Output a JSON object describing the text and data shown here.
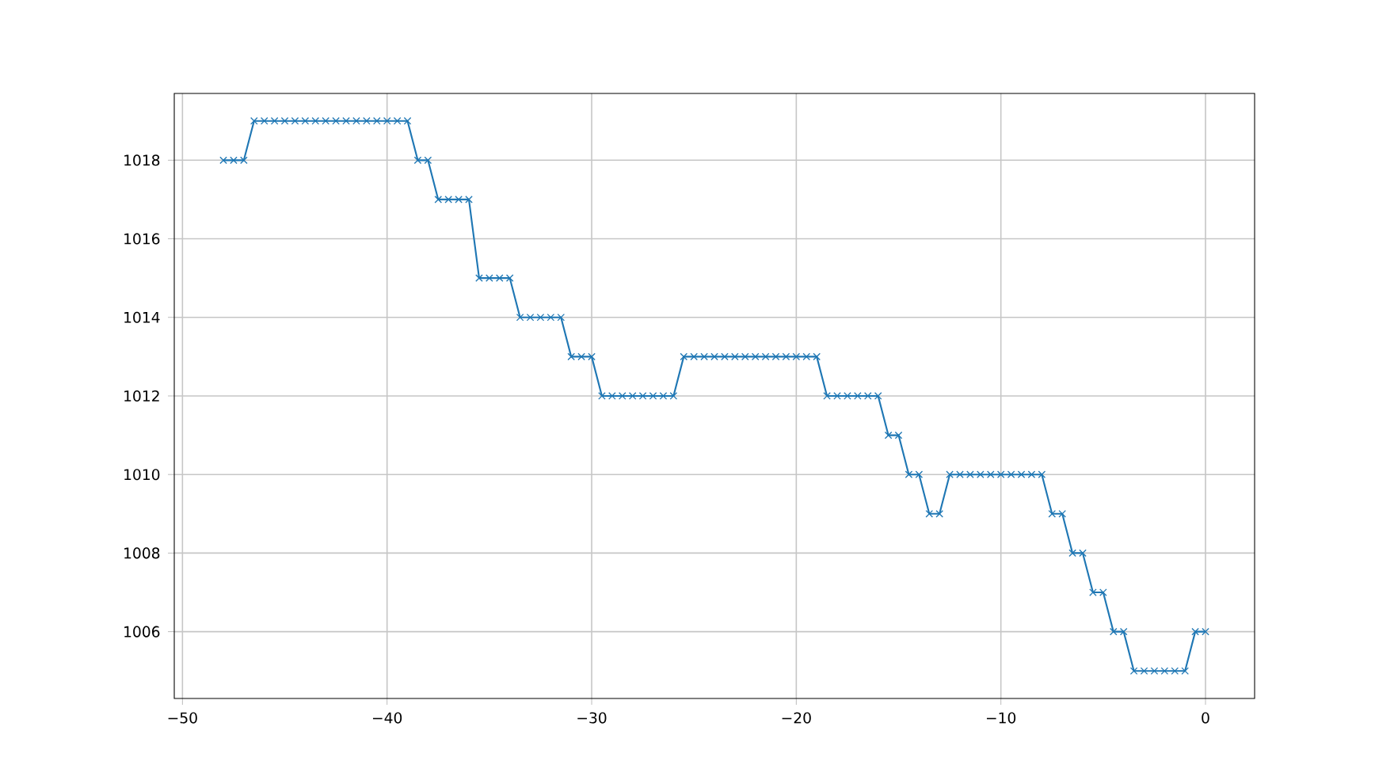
{
  "chart_data": {
    "type": "line",
    "x": [
      -48,
      -47.5,
      -47,
      -46.5,
      -46,
      -45.5,
      -45,
      -44.5,
      -44,
      -43.5,
      -43,
      -42.5,
      -42,
      -41.5,
      -41,
      -40.5,
      -40,
      -39.5,
      -39,
      -38.5,
      -38,
      -37.5,
      -37,
      -36.5,
      -36,
      -35.5,
      -35,
      -34.5,
      -34,
      -33.5,
      -33,
      -32.5,
      -32,
      -31.5,
      -31,
      -30.5,
      -30,
      -29.5,
      -29,
      -28.5,
      -28,
      -27.5,
      -27,
      -26.5,
      -26,
      -25.5,
      -25,
      -24.5,
      -24,
      -23.5,
      -23,
      -22.5,
      -22,
      -21.5,
      -21,
      -20.5,
      -20,
      -19.5,
      -19,
      -18.5,
      -18,
      -17.5,
      -17,
      -16.5,
      -16,
      -15.5,
      -15,
      -14.5,
      -14,
      -13.5,
      -13,
      -12.5,
      -12,
      -11.5,
      -11,
      -10.5,
      -10,
      -9.5,
      -9,
      -8.5,
      -8,
      -7.5,
      -7,
      -6.5,
      -6,
      -5.5,
      -5,
      -4.5,
      -4,
      -3.5,
      -3,
      -2.5,
      -2,
      -1.5,
      -1,
      -0.5,
      0
    ],
    "values": [
      1018,
      1018,
      1018,
      1019,
      1019,
      1019,
      1019,
      1019,
      1019,
      1019,
      1019,
      1019,
      1019,
      1019,
      1019,
      1019,
      1019,
      1019,
      1019,
      1018,
      1018,
      1017,
      1017,
      1017,
      1017,
      1015,
      1015,
      1015,
      1015,
      1014,
      1014,
      1014,
      1014,
      1014,
      1013,
      1013,
      1013,
      1012,
      1012,
      1012,
      1012,
      1012,
      1012,
      1012,
      1012,
      1013,
      1013,
      1013,
      1013,
      1013,
      1013,
      1013,
      1013,
      1013,
      1013,
      1013,
      1013,
      1013,
      1013,
      1012,
      1012,
      1012,
      1012,
      1012,
      1012,
      1011,
      1011,
      1010,
      1010,
      1009,
      1009,
      1010,
      1010,
      1010,
      1010,
      1010,
      1010,
      1010,
      1010,
      1010,
      1010,
      1009,
      1009,
      1008,
      1008,
      1007,
      1007,
      1006,
      1006,
      1005,
      1005,
      1005,
      1005,
      1005,
      1005,
      1006,
      1006
    ],
    "color": "#1f77b4",
    "marker": "cross",
    "line_style": "solid",
    "grid": true,
    "xlim": [
      -50.4,
      2.4
    ],
    "ylim": [
      1004.3,
      1019.7
    ],
    "xticks": [
      {
        "value": -50,
        "label": "−50"
      },
      {
        "value": -40,
        "label": "−40"
      },
      {
        "value": -30,
        "label": "−30"
      },
      {
        "value": -20,
        "label": "−20"
      },
      {
        "value": -10,
        "label": "−10"
      },
      0
    ],
    "yticks": [
      1006,
      1008,
      1010,
      1012,
      1014,
      1016,
      1018
    ]
  }
}
